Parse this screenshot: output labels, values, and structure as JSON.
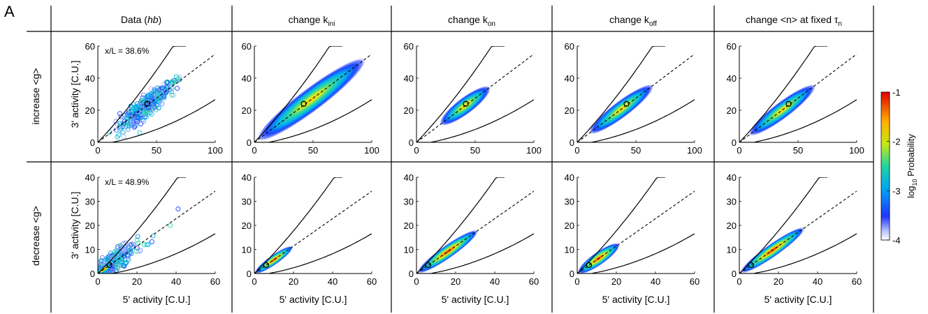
{
  "panel_label": "A",
  "columns": [
    {
      "title": "Data (hb)",
      "title_parts": [
        "Data (",
        "hb",
        ")"
      ]
    },
    {
      "title": "change k_ini",
      "title_main": "change k",
      "title_sub": "ini"
    },
    {
      "title": "change k_on",
      "title_main": "change k",
      "title_sub": "on"
    },
    {
      "title": "change k_off",
      "title_main": "change k",
      "title_sub": "off"
    },
    {
      "title": "change <n> at fixed τ_n",
      "title_main": "change <n> at fixed τ",
      "title_sub": "n"
    }
  ],
  "rows": [
    {
      "label": "increase <g>",
      "annotation": "x/L = 38.6%"
    },
    {
      "label": "decrease <g>",
      "annotation": "x/L = 48.9%"
    }
  ],
  "xlabel": "5' activity [C.U.]",
  "ylabel": "3' activity [C.U.]",
  "colorbar": {
    "label_main": "log",
    "label_sub": "10",
    "label_rest": " Probability",
    "ticks": [
      "-1",
      "-2",
      "-3",
      "-4"
    ],
    "range": [
      -4,
      -1
    ]
  },
  "chart_data": {
    "type": "heatmap",
    "layout": "2x5 grid",
    "rows": [
      {
        "name": "increase <g>",
        "xlim": [
          0,
          100
        ],
        "ylim": [
          0,
          60
        ],
        "xticks": [
          "0",
          "50",
          "100"
        ],
        "yticks": [
          "0",
          "20",
          "40",
          "60"
        ],
        "mean_point": [
          42,
          24
        ],
        "dashed_line_slope": 0.55,
        "panels": [
          {
            "kind": "scatter",
            "cloud": {
              "center": [
                42,
                24
              ],
              "x_range": [
                10,
                68
              ]
            }
          },
          {
            "kind": "density",
            "cloud": {
              "x_range": [
                2,
                95
              ],
              "center": [
                42,
                24
              ],
              "width": 7
            }
          },
          {
            "kind": "density",
            "cloud": {
              "x_range": [
                20,
                63
              ],
              "center": [
                42,
                24
              ],
              "width": 5
            }
          },
          {
            "kind": "density",
            "cloud": {
              "x_range": [
                10,
                65
              ],
              "center": [
                42,
                24
              ],
              "width": 5
            }
          },
          {
            "kind": "density",
            "cloud": {
              "x_range": [
                8,
                65
              ],
              "center": [
                42,
                24
              ],
              "width": 5
            }
          }
        ]
      },
      {
        "name": "decrease <g>",
        "xlim": [
          0,
          60
        ],
        "ylim": [
          0,
          40
        ],
        "xticks": [
          "0",
          "20",
          "40",
          "60"
        ],
        "yticks": [
          "0",
          "10",
          "20",
          "30",
          "40"
        ],
        "mean_point": [
          6,
          3.5
        ],
        "dashed_line_slope": 0.57,
        "panels": [
          {
            "kind": "scatter",
            "cloud": {
              "center": [
                6,
                3.5
              ],
              "x_range": [
                0,
                50
              ]
            }
          },
          {
            "kind": "density",
            "cloud": {
              "x_range": [
                0,
                20
              ],
              "center": [
                6,
                3.5
              ],
              "width": 3
            }
          },
          {
            "kind": "density",
            "cloud": {
              "x_range": [
                0,
                32
              ],
              "center": [
                6,
                3.5
              ],
              "width": 4
            }
          },
          {
            "kind": "density",
            "cloud": {
              "x_range": [
                0,
                22
              ],
              "center": [
                6,
                3.5
              ],
              "width": 4
            }
          },
          {
            "kind": "density",
            "cloud": {
              "x_range": [
                0,
                34
              ],
              "center": [
                6,
                3.5
              ],
              "width": 4
            }
          }
        ]
      }
    ]
  }
}
